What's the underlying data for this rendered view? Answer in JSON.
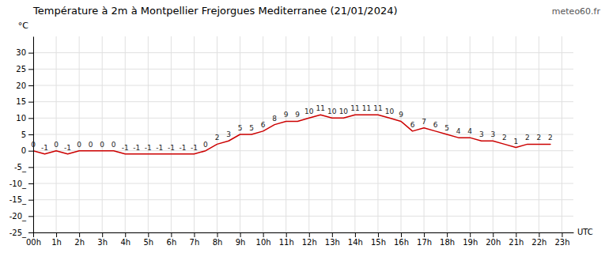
{
  "chart_data": {
    "type": "line",
    "title": "Température à 2m à Montpellier Frejorgues Mediterranee (21/01/2024)",
    "y_label": "°C",
    "x_label": "UTC",
    "annotations": [
      "meteo60.fr"
    ],
    "x": [
      0,
      0.5,
      1,
      1.5,
      2,
      2.5,
      3,
      3.5,
      4,
      4.5,
      5,
      5.5,
      6,
      6.5,
      7,
      7.5,
      8,
      8.5,
      9,
      9.5,
      10,
      10.5,
      11,
      11.5,
      12,
      12.5,
      13,
      13.5,
      14,
      14.5,
      15,
      15.5,
      16,
      16.5,
      17,
      17.5,
      18,
      18.5,
      19,
      19.5,
      20,
      20.5,
      21,
      21.5,
      22,
      22.5
    ],
    "values": [
      0,
      -1,
      0,
      -1,
      0,
      0,
      0,
      0,
      -1,
      -1,
      -1,
      -1,
      -1,
      -1,
      -1,
      0,
      2,
      3,
      5,
      5,
      6,
      8,
      9,
      9,
      10,
      11,
      10,
      10,
      11,
      11,
      11,
      10,
      9,
      6,
      7,
      6,
      5,
      4,
      4,
      3,
      3,
      2,
      1,
      2,
      2,
      2
    ],
    "color": "#cc0000",
    "xlim": [
      0,
      23.5
    ],
    "ylim": [
      -25,
      35
    ],
    "xticks": [
      {
        "value": 0,
        "label": "00h"
      },
      {
        "value": 1,
        "label": "1h"
      },
      {
        "value": 2,
        "label": "2h"
      },
      {
        "value": 3,
        "label": "3h"
      },
      {
        "value": 4,
        "label": "4h"
      },
      {
        "value": 5,
        "label": "5h"
      },
      {
        "value": 6,
        "label": "6h"
      },
      {
        "value": 7,
        "label": "7h"
      },
      {
        "value": 8,
        "label": "8h"
      },
      {
        "value": 9,
        "label": "9h"
      },
      {
        "value": 10,
        "label": "10h"
      },
      {
        "value": 11,
        "label": "11h"
      },
      {
        "value": 12,
        "label": "12h"
      },
      {
        "value": 13,
        "label": "13h"
      },
      {
        "value": 14,
        "label": "14h"
      },
      {
        "value": 15,
        "label": "15h"
      },
      {
        "value": 16,
        "label": "16h"
      },
      {
        "value": 17,
        "label": "17h"
      },
      {
        "value": 18,
        "label": "18h"
      },
      {
        "value": 19,
        "label": "19h"
      },
      {
        "value": 20,
        "label": "20h"
      },
      {
        "value": 21,
        "label": "21h"
      },
      {
        "value": 22,
        "label": "22h"
      },
      {
        "value": 23,
        "label": "23h"
      }
    ],
    "yticks": [
      {
        "value": -25,
        "label": "-25_"
      },
      {
        "value": -20,
        "label": "-20_"
      },
      {
        "value": -15,
        "label": "-15_"
      },
      {
        "value": -10,
        "label": "-10_"
      },
      {
        "value": -5,
        "label": "-5_"
      },
      0,
      5,
      10,
      15,
      20,
      25,
      30
    ],
    "grid": true,
    "data_labels": true
  }
}
